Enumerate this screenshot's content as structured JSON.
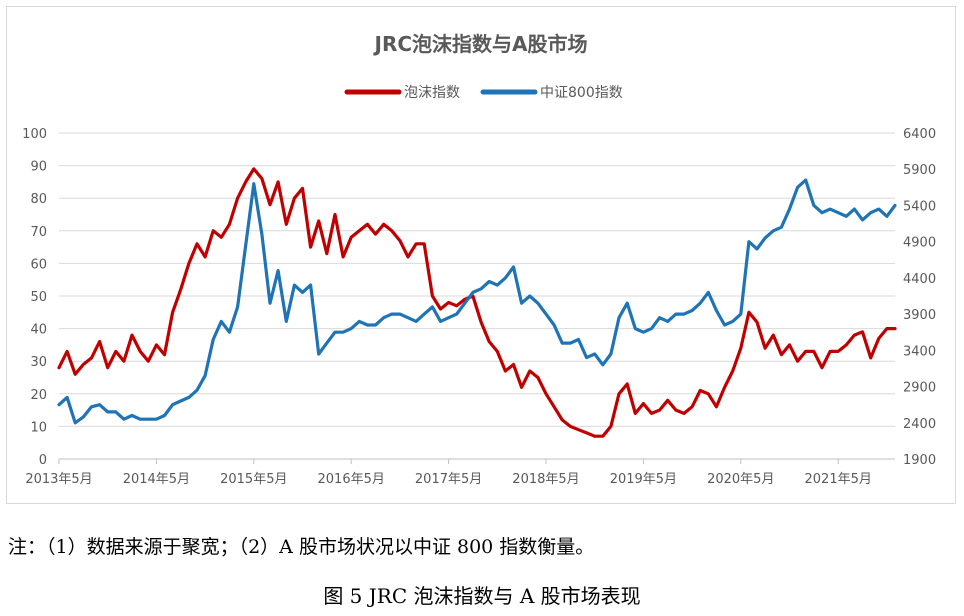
{
  "chart_data": {
    "type": "line",
    "title": "JRC泡沫指数与A股市场",
    "legend_position": "top",
    "grid": true,
    "x_tick_labels": [
      "2013年5月",
      "2014年5月",
      "2015年5月",
      "2016年5月",
      "2017年5月",
      "2018年5月",
      "2019年5月",
      "2020年5月",
      "2021年5月"
    ],
    "x_range": [
      "2013-05",
      "2021-12"
    ],
    "y_left_ticks": [
      "0",
      "10",
      "20",
      "30",
      "40",
      "50",
      "60",
      "70",
      "80",
      "90",
      "100"
    ],
    "y_left_range": [
      0,
      100
    ],
    "y_right_ticks": [
      "1900",
      "2400",
      "2900",
      "3400",
      "3900",
      "4400",
      "4900",
      "5400",
      "5900",
      "6400"
    ],
    "y_right_range": [
      1900,
      6400
    ],
    "series": [
      {
        "name": "泡沫指数",
        "color": "#c00000",
        "axis": "left",
        "x": [
          "2013-05",
          "2013-06",
          "2013-07",
          "2013-08",
          "2013-09",
          "2013-10",
          "2013-11",
          "2013-12",
          "2014-01",
          "2014-02",
          "2014-03",
          "2014-04",
          "2014-05",
          "2014-06",
          "2014-07",
          "2014-08",
          "2014-09",
          "2014-10",
          "2014-11",
          "2014-12",
          "2015-01",
          "2015-02",
          "2015-03",
          "2015-04",
          "2015-05",
          "2015-06",
          "2015-07",
          "2015-08",
          "2015-09",
          "2015-10",
          "2015-11",
          "2015-12",
          "2016-01",
          "2016-02",
          "2016-03",
          "2016-04",
          "2016-05",
          "2016-06",
          "2016-07",
          "2016-08",
          "2016-09",
          "2016-10",
          "2016-11",
          "2016-12",
          "2017-01",
          "2017-02",
          "2017-03",
          "2017-04",
          "2017-05",
          "2017-06",
          "2017-07",
          "2017-08",
          "2017-09",
          "2017-10",
          "2017-11",
          "2017-12",
          "2018-01",
          "2018-02",
          "2018-03",
          "2018-04",
          "2018-05",
          "2018-06",
          "2018-07",
          "2018-08",
          "2018-09",
          "2018-10",
          "2018-11",
          "2018-12",
          "2019-01",
          "2019-02",
          "2019-03",
          "2019-04",
          "2019-05",
          "2019-06",
          "2019-07",
          "2019-08",
          "2019-09",
          "2019-10",
          "2019-11",
          "2019-12",
          "2020-01",
          "2020-02",
          "2020-03",
          "2020-04",
          "2020-05",
          "2020-06",
          "2020-07",
          "2020-08",
          "2020-09",
          "2020-10",
          "2020-11",
          "2020-12",
          "2021-01",
          "2021-02",
          "2021-03",
          "2021-04",
          "2021-05",
          "2021-06",
          "2021-07",
          "2021-08",
          "2021-09",
          "2021-10",
          "2021-11",
          "2021-12"
        ],
        "values": [
          28,
          33,
          26,
          29,
          31,
          36,
          28,
          33,
          30,
          38,
          33,
          30,
          35,
          32,
          45,
          52,
          60,
          66,
          62,
          70,
          68,
          72,
          80,
          85,
          89,
          86,
          78,
          85,
          72,
          80,
          83,
          65,
          73,
          63,
          75,
          62,
          68,
          70,
          72,
          69,
          72,
          70,
          67,
          62,
          66,
          66,
          50,
          46,
          48,
          47,
          49,
          50,
          42,
          36,
          33,
          27,
          29,
          22,
          27,
          25,
          20,
          16,
          12,
          10,
          9,
          8,
          7,
          7,
          10,
          20,
          23,
          14,
          17,
          14,
          15,
          18,
          15,
          14,
          16,
          21,
          20,
          16,
          22,
          27,
          34,
          45,
          42,
          34,
          38,
          32,
          35,
          30,
          33,
          33,
          28,
          33,
          33,
          35,
          38,
          39,
          31,
          37,
          40,
          40
        ]
      },
      {
        "name": "中证800指数",
        "color": "#1f73b7",
        "axis": "right",
        "x": [
          "2013-05",
          "2013-06",
          "2013-07",
          "2013-08",
          "2013-09",
          "2013-10",
          "2013-11",
          "2013-12",
          "2014-01",
          "2014-02",
          "2014-03",
          "2014-04",
          "2014-05",
          "2014-06",
          "2014-07",
          "2014-08",
          "2014-09",
          "2014-10",
          "2014-11",
          "2014-12",
          "2015-01",
          "2015-02",
          "2015-03",
          "2015-04",
          "2015-05",
          "2015-06",
          "2015-07",
          "2015-08",
          "2015-09",
          "2015-10",
          "2015-11",
          "2015-12",
          "2016-01",
          "2016-02",
          "2016-03",
          "2016-04",
          "2016-05",
          "2016-06",
          "2016-07",
          "2016-08",
          "2016-09",
          "2016-10",
          "2016-11",
          "2016-12",
          "2017-01",
          "2017-02",
          "2017-03",
          "2017-04",
          "2017-05",
          "2017-06",
          "2017-07",
          "2017-08",
          "2017-09",
          "2017-10",
          "2017-11",
          "2017-12",
          "2018-01",
          "2018-02",
          "2018-03",
          "2018-04",
          "2018-05",
          "2018-06",
          "2018-07",
          "2018-08",
          "2018-09",
          "2018-10",
          "2018-11",
          "2018-12",
          "2019-01",
          "2019-02",
          "2019-03",
          "2019-04",
          "2019-05",
          "2019-06",
          "2019-07",
          "2019-08",
          "2019-09",
          "2019-10",
          "2019-11",
          "2019-12",
          "2020-01",
          "2020-02",
          "2020-03",
          "2020-04",
          "2020-05",
          "2020-06",
          "2020-07",
          "2020-08",
          "2020-09",
          "2020-10",
          "2020-11",
          "2020-12",
          "2021-01",
          "2021-02",
          "2021-03",
          "2021-04",
          "2021-05",
          "2021-06",
          "2021-07",
          "2021-08",
          "2021-09",
          "2021-10",
          "2021-11",
          "2021-12"
        ],
        "values": [
          2650,
          2750,
          2400,
          2480,
          2620,
          2650,
          2550,
          2550,
          2450,
          2500,
          2450,
          2450,
          2450,
          2500,
          2650,
          2700,
          2750,
          2850,
          3050,
          3550,
          3800,
          3650,
          4000,
          4850,
          5700,
          5000,
          4050,
          4500,
          3800,
          4300,
          4200,
          4300,
          3350,
          3500,
          3650,
          3650,
          3700,
          3800,
          3750,
          3750,
          3850,
          3900,
          3900,
          3850,
          3800,
          3900,
          4000,
          3800,
          3850,
          3900,
          4050,
          4200,
          4250,
          4350,
          4300,
          4400,
          4550,
          4050,
          4150,
          4050,
          3900,
          3750,
          3500,
          3500,
          3550,
          3300,
          3350,
          3200,
          3350,
          3850,
          4050,
          3700,
          3650,
          3700,
          3850,
          3800,
          3900,
          3900,
          3950,
          4050,
          4200,
          3950,
          3750,
          3800,
          3900,
          4900,
          4800,
          4950,
          5050,
          5100,
          5350,
          5650,
          5750,
          5400,
          5300,
          5350,
          5300,
          5250,
          5350,
          5200,
          5300,
          5350,
          5250,
          5400
        ]
      }
    ]
  },
  "note": "注：（1）数据来源于聚宽；（2）A 股市场状况以中证 800 指数衡量。",
  "caption": "图 5 JRC 泡沫指数与 A 股市场表现"
}
